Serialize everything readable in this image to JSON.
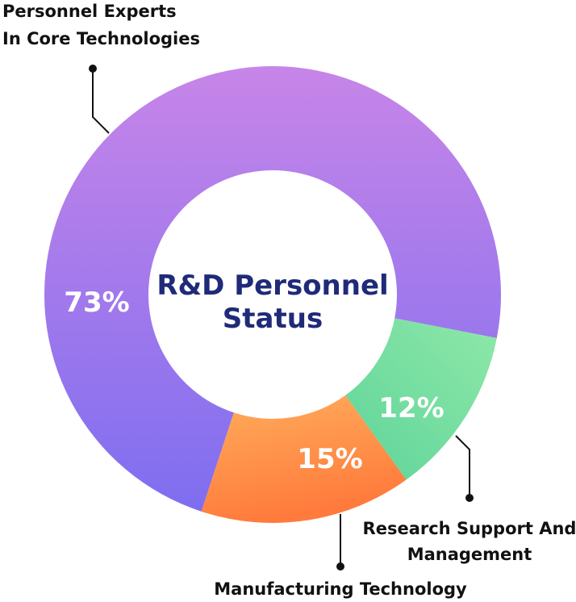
{
  "chart_data": {
    "type": "pie",
    "donut": true,
    "title": "R&D Personnel Status",
    "title_lines": [
      "R&D Personnel",
      "Status"
    ],
    "slices": [
      {
        "label_lines": [
          "Personnel Experts",
          "In Core Technologies"
        ],
        "value": 73,
        "value_label": "73%",
        "color_start": "#c785e8",
        "color_end": "#7e6ef0"
      },
      {
        "label_lines": [
          "Research Support And",
          "Management"
        ],
        "value": 12,
        "value_label": "12%",
        "color_start": "#8ee8a8",
        "color_end": "#5fd49a"
      },
      {
        "label_lines": [
          "Manufacturing Technology"
        ],
        "value": 15,
        "value_label": "15%",
        "color_start": "#ffae5c",
        "color_end": "#ff7a3c"
      }
    ]
  }
}
